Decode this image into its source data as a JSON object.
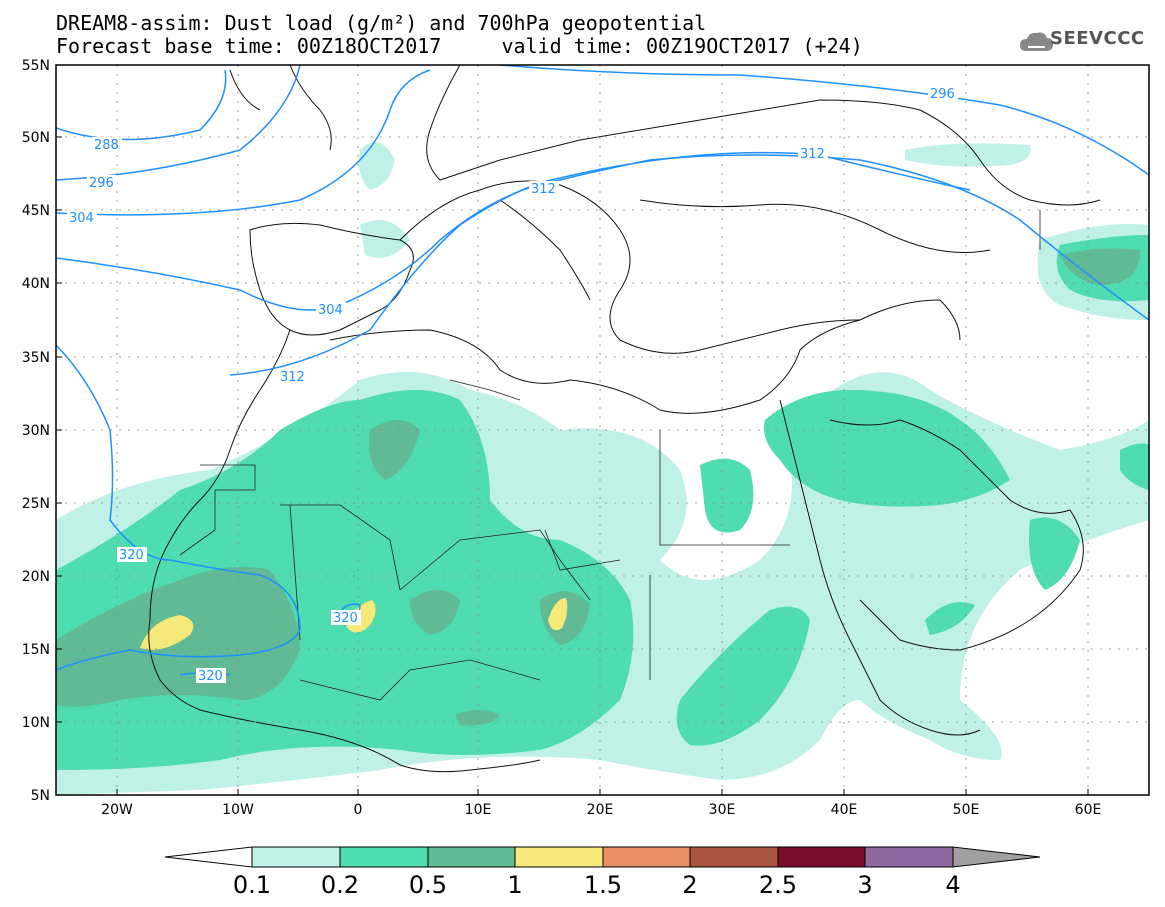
{
  "title": {
    "line1": "DREAM8-assim: Dust load (g/m²) and 700hPa geopotential",
    "line2": "Forecast base time: 00Z18OCT2017     valid time: 00Z19OCT2017 (+24)"
  },
  "logo": {
    "text": "SEEVCCC",
    "icon": "cloud-icon"
  },
  "axes": {
    "lat_labels": [
      "55N",
      "50N",
      "45N",
      "40N",
      "35N",
      "30N",
      "25N",
      "20N",
      "15N",
      "10N",
      "5N"
    ],
    "lon_labels": [
      "20W",
      "10W",
      "0",
      "10E",
      "20E",
      "30E",
      "40E",
      "50E",
      "60E"
    ]
  },
  "contour_labels": [
    "288",
    "296",
    "304",
    "304",
    "312",
    "296",
    "312",
    "312",
    "320",
    "320",
    "320"
  ],
  "colorbar": {
    "labels": [
      "0.1",
      "0.2",
      "0.5",
      "1",
      "1.5",
      "2",
      "2.5",
      "3",
      "4"
    ],
    "colors": [
      "#bff1e6",
      "#4fdcb0",
      "#5fba95",
      "#f5e97a",
      "#e89068",
      "#a95440",
      "#7a0d2b",
      "#8e6aa0",
      "#a0a0a0"
    ]
  },
  "colors": {
    "contour": "#1e90ff",
    "dust_low": "#bff1e6",
    "dust_mid": "#4fdcb0",
    "dust_high": "#5fba95",
    "dust_peak": "#f5e97a"
  }
}
